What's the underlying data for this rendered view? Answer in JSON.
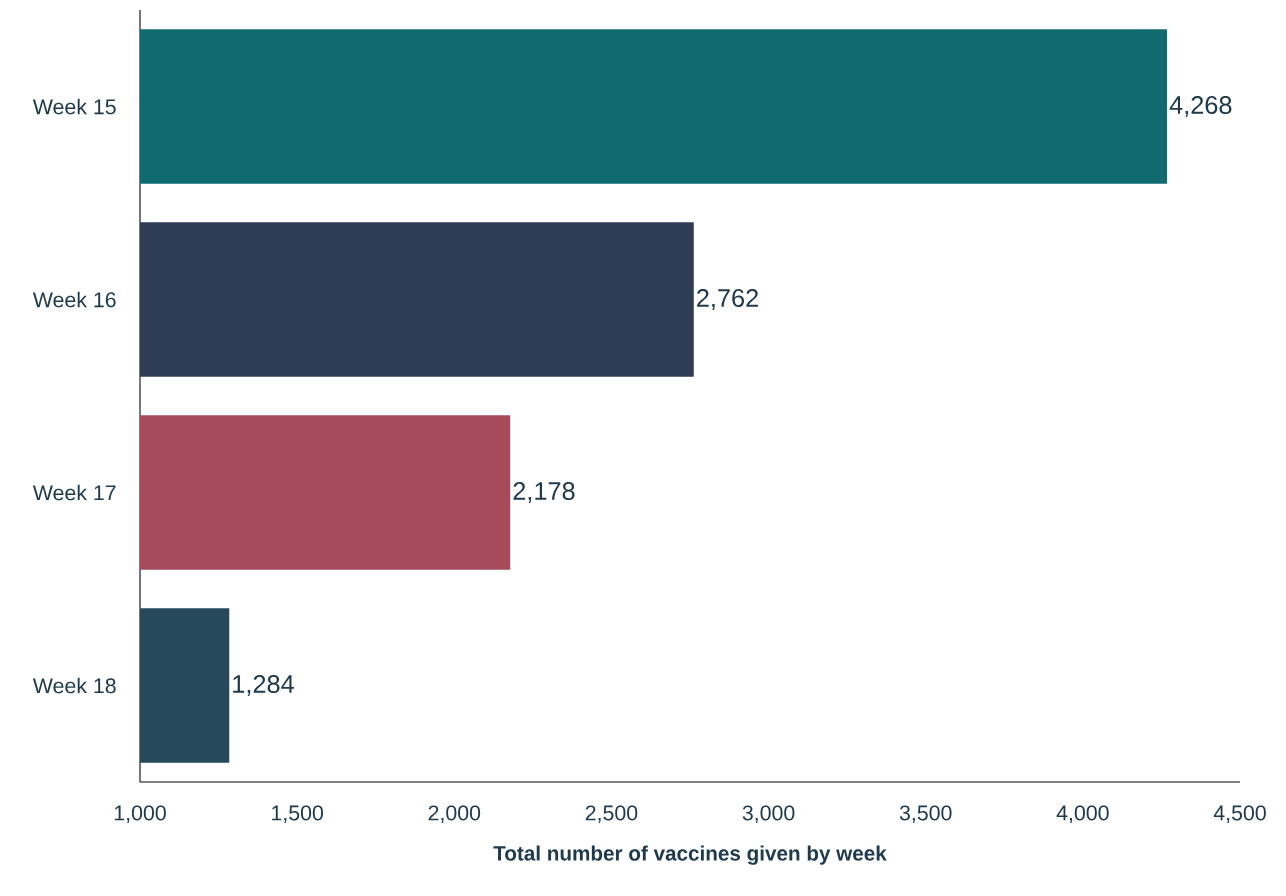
{
  "chart_data": {
    "type": "bar",
    "orientation": "horizontal",
    "xlabel": "**Total number of vaccines given by week**",
    "categories": [
      "Week 15",
      "Week 16",
      "Week 17",
      "Week 18"
    ],
    "values": [
      4268,
      2762,
      2178,
      1284
    ],
    "colors": [
      "#0f6b70",
      "#2e3d55",
      "#a64b5c",
      "#264a5c"
    ],
    "value_labels": [
      "4,268",
      "2,762",
      "2,178",
      "1,284"
    ],
    "xlim": [
      1000,
      4500
    ],
    "xticks": [
      {
        "value": 1000,
        "label": "1,000"
      },
      {
        "value": 1500,
        "label": "1,500"
      },
      {
        "value": 2000,
        "label": "2,000"
      },
      {
        "value": 2500,
        "label": "2,500"
      },
      {
        "value": 3000,
        "label": "3,000"
      },
      {
        "value": 3500,
        "label": "3,500"
      },
      {
        "value": 4000,
        "label": "4,000"
      },
      {
        "value": 4500,
        "label": "4,500"
      }
    ],
    "grid": false
  }
}
